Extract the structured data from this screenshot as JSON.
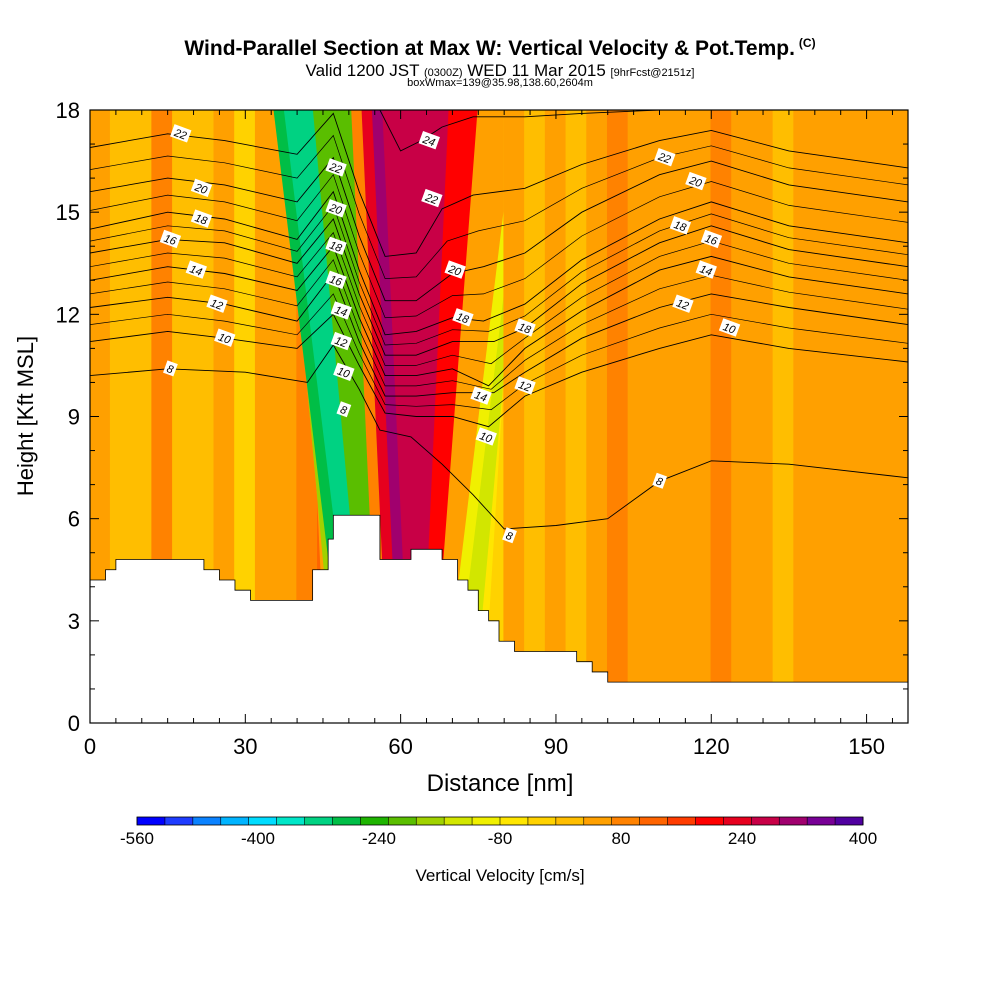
{
  "header": {
    "title": "Wind-Parallel Section at Max W: Vertical Velocity & Pot.Temp.",
    "title_mark": "(C)",
    "valid_prefix": "Valid 1200 JST",
    "valid_utc": "(0300Z)",
    "valid_date": "WED 11 Mar 2015",
    "forecast": "[9hrFcst@2151z]",
    "box_info": "boxWmax=139@35.98,138.60,2604m"
  },
  "chart_data": {
    "type": "heatmap",
    "xlabel": "Distance [nm]",
    "ylabel": "Height [Kft MSL]",
    "xlim": [
      0,
      158
    ],
    "ylim": [
      0,
      18
    ],
    "x_ticks": [
      0,
      30,
      60,
      90,
      120,
      150
    ],
    "y_ticks": [
      0,
      3,
      6,
      9,
      12,
      15,
      18
    ],
    "colorbar": {
      "label": "Vertical Velocity [cm/s]",
      "tick_labels": [
        -560,
        -400,
        -240,
        -80,
        80,
        240,
        400
      ],
      "colors": [
        "#0000ff",
        "#1e3cff",
        "#0a82ff",
        "#00b4ff",
        "#00dcff",
        "#00e6c8",
        "#00d282",
        "#00be46",
        "#1eb400",
        "#5abe00",
        "#a0d200",
        "#d2e600",
        "#f0f000",
        "#ffe600",
        "#ffd200",
        "#ffbe00",
        "#ffa000",
        "#ff8200",
        "#ff6400",
        "#ff3c00",
        "#ff0000",
        "#e6001e",
        "#c80046",
        "#a0006e",
        "#780096",
        "#5000a0"
      ],
      "band_edges": [
        -560,
        400
      ]
    },
    "velocity_columns": {
      "x": [
        0,
        4,
        8,
        12,
        16,
        20,
        24,
        28,
        32,
        36,
        40,
        42,
        44,
        46,
        48,
        50,
        52,
        54,
        56,
        58,
        60,
        62,
        64,
        66,
        68,
        70,
        72,
        74,
        76,
        80,
        84,
        88,
        92,
        96,
        100,
        104,
        108,
        112,
        116,
        120,
        124,
        128,
        132,
        136,
        140,
        144,
        150,
        158
      ],
      "w": [
        60,
        30,
        10,
        70,
        20,
        10,
        50,
        -20,
        40,
        60,
        80,
        100,
        130,
        60,
        -160,
        -280,
        -320,
        -200,
        100,
        240,
        300,
        280,
        200,
        60,
        -100,
        -150,
        -130,
        -70,
        -40,
        40,
        20,
        60,
        30,
        50,
        70,
        60,
        50,
        40,
        60,
        80,
        60,
        40,
        30,
        50,
        60,
        40,
        60,
        40
      ],
      "tilt_per_kft": [
        0,
        0,
        0,
        0,
        0,
        0,
        0,
        0,
        0,
        0,
        0,
        0,
        0,
        -0.3,
        -0.6,
        -0.8,
        -0.8,
        -0.6,
        -0.3,
        -0.3,
        -0.3,
        -0.3,
        0.3,
        0.5,
        0.8,
        0.8,
        0.7,
        0.6,
        0.4,
        0,
        0,
        0,
        0,
        0,
        0,
        0,
        0,
        0,
        0,
        0,
        0,
        0,
        0,
        0,
        0,
        0,
        0,
        0
      ]
    },
    "terrain": {
      "x": [
        0,
        3,
        5,
        7,
        10,
        15,
        20,
        22,
        25,
        28,
        31,
        34,
        37,
        40,
        43,
        46,
        47,
        52,
        53,
        56,
        60,
        62,
        65,
        68,
        71,
        73,
        75,
        77,
        79,
        82,
        85,
        88,
        91,
        94,
        97,
        100,
        158
      ],
      "top": [
        4.2,
        4.5,
        4.8,
        4.8,
        4.8,
        4.8,
        4.8,
        4.5,
        4.2,
        3.9,
        3.6,
        3.6,
        3.6,
        3.6,
        4.5,
        5.4,
        6.1,
        6.1,
        6.1,
        4.8,
        4.8,
        5.1,
        5.1,
        4.8,
        4.2,
        3.9,
        3.3,
        3.0,
        2.4,
        2.1,
        2.1,
        2.1,
        2.1,
        1.8,
        1.5,
        1.2,
        0.3
      ]
    },
    "isentropes": [
      {
        "label": "8",
        "points": [
          [
            0,
            10.2
          ],
          [
            15,
            10.4
          ],
          [
            30,
            10.3
          ],
          [
            42,
            10.0
          ],
          [
            47,
            11.1
          ],
          [
            52,
            9.8
          ],
          [
            56,
            8.6
          ],
          [
            62,
            8.4
          ],
          [
            68,
            7.6
          ],
          [
            74,
            6.7
          ],
          [
            80,
            5.7
          ],
          [
            90,
            5.8
          ],
          [
            100,
            6.0
          ],
          [
            110,
            7.1
          ],
          [
            120,
            7.7
          ],
          [
            135,
            7.6
          ],
          [
            158,
            7.2
          ]
        ]
      },
      {
        "label": "10",
        "points": [
          [
            0,
            11.2
          ],
          [
            15,
            11.5
          ],
          [
            26,
            11.3
          ],
          [
            40,
            11.0
          ],
          [
            47,
            12.0
          ],
          [
            52,
            10.5
          ],
          [
            57,
            9.1
          ],
          [
            63,
            9.0
          ],
          [
            70,
            9.0
          ],
          [
            77,
            8.7
          ],
          [
            84,
            9.6
          ],
          [
            95,
            10.3
          ],
          [
            110,
            11.0
          ],
          [
            120,
            11.4
          ],
          [
            135,
            11.0
          ],
          [
            158,
            10.6
          ]
        ]
      },
      {
        "label": "12",
        "points": [
          [
            0,
            12.2
          ],
          [
            15,
            12.5
          ],
          [
            26,
            12.3
          ],
          [
            40,
            11.8
          ],
          [
            47,
            13.2
          ],
          [
            52,
            11.2
          ],
          [
            57,
            9.6
          ],
          [
            63,
            9.6
          ],
          [
            70,
            9.7
          ],
          [
            78,
            9.7
          ],
          [
            84,
            10.3
          ],
          [
            95,
            11.3
          ],
          [
            110,
            12.2
          ],
          [
            120,
            12.6
          ],
          [
            135,
            12.2
          ],
          [
            158,
            11.7
          ]
        ]
      },
      {
        "label": "14",
        "points": [
          [
            0,
            13.0
          ],
          [
            15,
            13.4
          ],
          [
            26,
            13.2
          ],
          [
            40,
            12.7
          ],
          [
            47,
            14.0
          ],
          [
            52,
            11.9
          ],
          [
            57,
            10.2
          ],
          [
            63,
            10.2
          ],
          [
            70,
            10.4
          ],
          [
            77,
            9.9
          ],
          [
            84,
            11.0
          ],
          [
            95,
            12.1
          ],
          [
            110,
            13.3
          ],
          [
            120,
            13.7
          ],
          [
            135,
            13.1
          ],
          [
            158,
            12.6
          ]
        ]
      },
      {
        "label": "16",
        "points": [
          [
            0,
            13.8
          ],
          [
            15,
            14.2
          ],
          [
            26,
            14.1
          ],
          [
            40,
            13.5
          ],
          [
            47,
            14.8
          ],
          [
            52,
            12.6
          ],
          [
            57,
            10.8
          ],
          [
            63,
            10.8
          ],
          [
            70,
            11.2
          ],
          [
            78,
            11.2
          ],
          [
            84,
            11.6
          ],
          [
            95,
            12.9
          ],
          [
            110,
            14.1
          ],
          [
            120,
            14.6
          ],
          [
            135,
            13.9
          ],
          [
            158,
            13.4
          ]
        ]
      },
      {
        "label": "18",
        "points": [
          [
            0,
            14.5
          ],
          [
            15,
            15.0
          ],
          [
            26,
            14.8
          ],
          [
            40,
            14.2
          ],
          [
            47,
            15.6
          ],
          [
            52,
            13.3
          ],
          [
            57,
            11.4
          ],
          [
            63,
            11.5
          ],
          [
            70,
            11.9
          ],
          [
            76,
            11.8
          ],
          [
            84,
            12.3
          ],
          [
            95,
            13.6
          ],
          [
            110,
            14.8
          ],
          [
            120,
            15.3
          ],
          [
            135,
            14.6
          ],
          [
            158,
            14.1
          ]
        ]
      },
      {
        "label": "20",
        "points": [
          [
            0,
            15.6
          ],
          [
            15,
            16.0
          ],
          [
            26,
            15.8
          ],
          [
            40,
            15.3
          ],
          [
            47,
            16.6
          ],
          [
            52,
            14.3
          ],
          [
            57,
            12.4
          ],
          [
            63,
            12.4
          ],
          [
            70,
            13.2
          ],
          [
            76,
            13.4
          ],
          [
            84,
            13.8
          ],
          [
            95,
            15.0
          ],
          [
            110,
            16.1
          ],
          [
            120,
            16.5
          ],
          [
            135,
            15.8
          ],
          [
            158,
            15.3
          ]
        ]
      },
      {
        "label": "22",
        "points": [
          [
            0,
            16.9
          ],
          [
            15,
            17.3
          ],
          [
            26,
            17.1
          ],
          [
            40,
            16.7
          ],
          [
            47,
            17.9
          ],
          [
            52,
            15.6
          ],
          [
            57,
            13.7
          ],
          [
            63,
            13.8
          ],
          [
            68,
            15.1
          ],
          [
            74,
            15.5
          ],
          [
            84,
            15.7
          ],
          [
            95,
            16.4
          ],
          [
            110,
            17.1
          ],
          [
            120,
            17.4
          ],
          [
            135,
            16.8
          ],
          [
            158,
            16.3
          ]
        ]
      },
      {
        "label": "24",
        "points": [
          [
            56,
            18.0
          ],
          [
            60,
            16.8
          ],
          [
            64,
            17.1
          ],
          [
            68,
            17.5
          ],
          [
            74,
            17.8
          ],
          [
            84,
            17.8
          ],
          [
            95,
            17.9
          ],
          [
            110,
            18.0
          ]
        ]
      }
    ],
    "contour_labels": [
      {
        "text": "22",
        "x": 17.5,
        "y": 17.3
      },
      {
        "text": "20",
        "x": 21.5,
        "y": 15.7
      },
      {
        "text": "18",
        "x": 21.5,
        "y": 14.8
      },
      {
        "text": "16",
        "x": 15.5,
        "y": 14.2
      },
      {
        "text": "14",
        "x": 20.5,
        "y": 13.3
      },
      {
        "text": "12",
        "x": 24.5,
        "y": 12.3
      },
      {
        "text": "10",
        "x": 26.0,
        "y": 11.3
      },
      {
        "text": "8",
        "x": 15.5,
        "y": 10.4
      },
      {
        "text": "22",
        "x": 47.5,
        "y": 16.3
      },
      {
        "text": "20",
        "x": 47.5,
        "y": 15.1
      },
      {
        "text": "18",
        "x": 47.5,
        "y": 14.0
      },
      {
        "text": "16",
        "x": 47.5,
        "y": 13.0
      },
      {
        "text": "14",
        "x": 48.5,
        "y": 12.1
      },
      {
        "text": "12",
        "x": 48.5,
        "y": 11.2
      },
      {
        "text": "10",
        "x": 49.0,
        "y": 10.3
      },
      {
        "text": "8",
        "x": 49.0,
        "y": 9.2
      },
      {
        "text": "24",
        "x": 65.5,
        "y": 17.1
      },
      {
        "text": "22",
        "x": 66.0,
        "y": 15.4
      },
      {
        "text": "20",
        "x": 70.5,
        "y": 13.3
      },
      {
        "text": "18",
        "x": 72.0,
        "y": 11.9
      },
      {
        "text": "14",
        "x": 75.5,
        "y": 9.6
      },
      {
        "text": "10",
        "x": 76.5,
        "y": 8.4
      },
      {
        "text": "8",
        "x": 81.0,
        "y": 5.5
      },
      {
        "text": "18",
        "x": 84.0,
        "y": 11.6
      },
      {
        "text": "12",
        "x": 84.0,
        "y": 9.9
      },
      {
        "text": "22",
        "x": 111.0,
        "y": 16.6
      },
      {
        "text": "20",
        "x": 117.0,
        "y": 15.9
      },
      {
        "text": "18",
        "x": 114.0,
        "y": 14.6
      },
      {
        "text": "16",
        "x": 120.0,
        "y": 14.2
      },
      {
        "text": "14",
        "x": 119.0,
        "y": 13.3
      },
      {
        "text": "12",
        "x": 114.5,
        "y": 12.3
      },
      {
        "text": "10",
        "x": 123.5,
        "y": 11.6
      },
      {
        "text": "8",
        "x": 110.0,
        "y": 7.1
      }
    ],
    "grid": false,
    "legend": "bottom"
  }
}
